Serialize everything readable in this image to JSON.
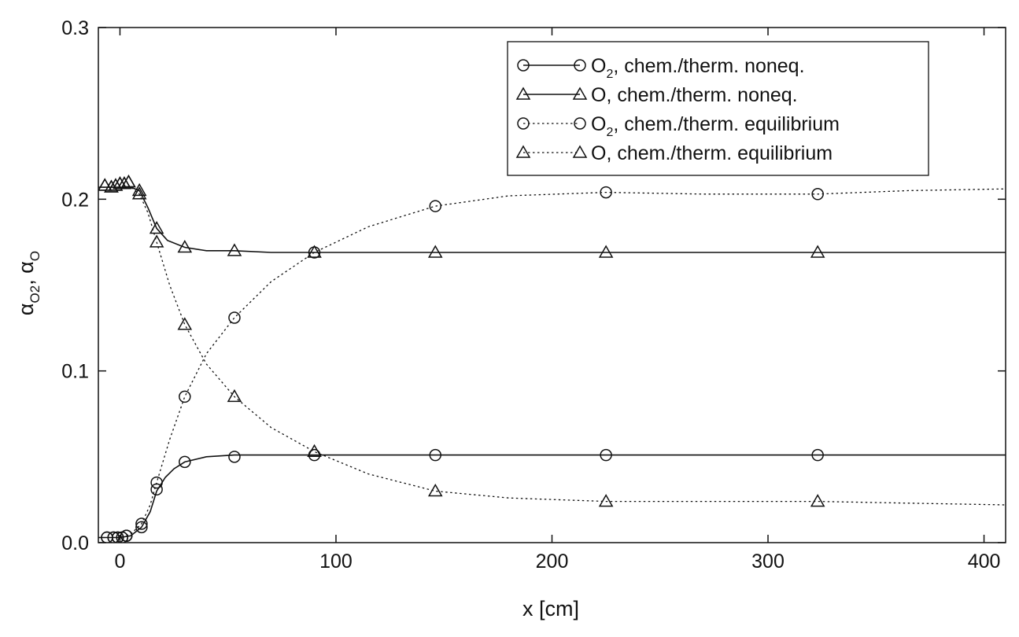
{
  "chart_data": {
    "type": "line",
    "xlabel": "x [cm]",
    "ylabel": {
      "main": "α",
      "sub1": "O2",
      "sep": ", ",
      "main2": "α",
      "sub2": "O"
    },
    "xlim": [
      -10,
      410
    ],
    "ylim": [
      0,
      0.3
    ],
    "xticks": [
      0,
      100,
      200,
      300,
      400
    ],
    "xtick_labels": [
      "0",
      "100",
      "200",
      "300",
      "400"
    ],
    "yticks": [
      0.0,
      0.1,
      0.2,
      0.3
    ],
    "ytick_labels": [
      "0.0",
      "0.1",
      "0.2",
      "0.3"
    ],
    "grid": false,
    "legend_position": "top-right",
    "series": [
      {
        "name": "O2, chem./therm. noneq.",
        "legend": {
          "prefix": "O",
          "sub": "2",
          "rest": ", chem./therm. noneq."
        },
        "marker": "circle",
        "line": "solid",
        "markers": [
          [
            -6,
            0.003
          ],
          [
            -3,
            0.003
          ],
          [
            -1,
            0.003
          ],
          [
            1,
            0.003
          ],
          [
            3,
            0.004
          ],
          [
            10,
            0.009
          ],
          [
            17,
            0.031
          ],
          [
            30,
            0.047
          ],
          [
            53,
            0.05
          ],
          [
            90,
            0.051
          ],
          [
            146,
            0.051
          ],
          [
            225,
            0.051
          ],
          [
            323,
            0.051
          ]
        ],
        "curve": [
          [
            -10,
            0.003
          ],
          [
            0,
            0.003
          ],
          [
            5,
            0.004
          ],
          [
            10,
            0.009
          ],
          [
            14,
            0.018
          ],
          [
            17,
            0.03
          ],
          [
            21,
            0.038
          ],
          [
            25,
            0.043
          ],
          [
            30,
            0.047
          ],
          [
            40,
            0.05
          ],
          [
            53,
            0.051
          ],
          [
            70,
            0.051
          ],
          [
            90,
            0.051
          ],
          [
            146,
            0.051
          ],
          [
            225,
            0.051
          ],
          [
            323,
            0.051
          ],
          [
            410,
            0.051
          ]
        ]
      },
      {
        "name": "O, chem./therm. noneq.",
        "legend": {
          "prefix": "O",
          "sub": "",
          "rest": ", chem./therm. noneq."
        },
        "marker": "triangle",
        "line": "solid",
        "markers": [
          [
            -7,
            0.208
          ],
          [
            -4,
            0.207
          ],
          [
            -2,
            0.208
          ],
          [
            0,
            0.209
          ],
          [
            2,
            0.209
          ],
          [
            4,
            0.21
          ],
          [
            9,
            0.205
          ],
          [
            17,
            0.183
          ],
          [
            30,
            0.172
          ],
          [
            53,
            0.17
          ],
          [
            90,
            0.169
          ],
          [
            146,
            0.169
          ],
          [
            225,
            0.169
          ],
          [
            323,
            0.169
          ]
        ],
        "curve": [
          [
            -10,
            0.207
          ],
          [
            0,
            0.207
          ],
          [
            5,
            0.207
          ],
          [
            9,
            0.205
          ],
          [
            13,
            0.195
          ],
          [
            17,
            0.183
          ],
          [
            22,
            0.176
          ],
          [
            30,
            0.172
          ],
          [
            40,
            0.17
          ],
          [
            53,
            0.17
          ],
          [
            70,
            0.169
          ],
          [
            90,
            0.169
          ],
          [
            146,
            0.169
          ],
          [
            225,
            0.169
          ],
          [
            323,
            0.169
          ],
          [
            410,
            0.169
          ]
        ]
      },
      {
        "name": "O2, chem./therm. equilibrium",
        "legend": {
          "prefix": "O",
          "sub": "2",
          "rest": ", chem./therm. equilibrium"
        },
        "marker": "circle",
        "line": "dotted",
        "markers": [
          [
            -6,
            0.003
          ],
          [
            -3,
            0.003
          ],
          [
            -1,
            0.003
          ],
          [
            1,
            0.003
          ],
          [
            3,
            0.004
          ],
          [
            10,
            0.011
          ],
          [
            17,
            0.035
          ],
          [
            30,
            0.085
          ],
          [
            53,
            0.131
          ],
          [
            90,
            0.169
          ],
          [
            146,
            0.196
          ],
          [
            225,
            0.204
          ],
          [
            323,
            0.203
          ]
        ],
        "curve": [
          [
            -10,
            0.003
          ],
          [
            0,
            0.003
          ],
          [
            5,
            0.005
          ],
          [
            10,
            0.011
          ],
          [
            14,
            0.022
          ],
          [
            17,
            0.035
          ],
          [
            23,
            0.06
          ],
          [
            30,
            0.085
          ],
          [
            40,
            0.11
          ],
          [
            53,
            0.131
          ],
          [
            70,
            0.152
          ],
          [
            90,
            0.169
          ],
          [
            115,
            0.184
          ],
          [
            146,
            0.196
          ],
          [
            180,
            0.202
          ],
          [
            225,
            0.204
          ],
          [
            270,
            0.203
          ],
          [
            323,
            0.203
          ],
          [
            365,
            0.205
          ],
          [
            410,
            0.206
          ]
        ]
      },
      {
        "name": "O, chem./therm. equilibrium",
        "legend": {
          "prefix": "O",
          "sub": "",
          "rest": ", chem./therm. equilibrium"
        },
        "marker": "triangle",
        "line": "dotted",
        "markers": [
          [
            -7,
            0.208
          ],
          [
            -4,
            0.207
          ],
          [
            -2,
            0.208
          ],
          [
            0,
            0.209
          ],
          [
            2,
            0.209
          ],
          [
            4,
            0.21
          ],
          [
            9,
            0.203
          ],
          [
            17,
            0.175
          ],
          [
            30,
            0.127
          ],
          [
            53,
            0.085
          ],
          [
            90,
            0.053
          ],
          [
            146,
            0.03
          ],
          [
            225,
            0.024
          ],
          [
            323,
            0.024
          ]
        ],
        "curve": [
          [
            -10,
            0.207
          ],
          [
            0,
            0.207
          ],
          [
            5,
            0.207
          ],
          [
            9,
            0.203
          ],
          [
            13,
            0.192
          ],
          [
            17,
            0.175
          ],
          [
            23,
            0.15
          ],
          [
            30,
            0.127
          ],
          [
            40,
            0.104
          ],
          [
            53,
            0.085
          ],
          [
            70,
            0.067
          ],
          [
            90,
            0.053
          ],
          [
            115,
            0.04
          ],
          [
            146,
            0.03
          ],
          [
            180,
            0.026
          ],
          [
            225,
            0.024
          ],
          [
            270,
            0.024
          ],
          [
            323,
            0.024
          ],
          [
            365,
            0.023
          ],
          [
            410,
            0.022
          ]
        ]
      }
    ]
  }
}
